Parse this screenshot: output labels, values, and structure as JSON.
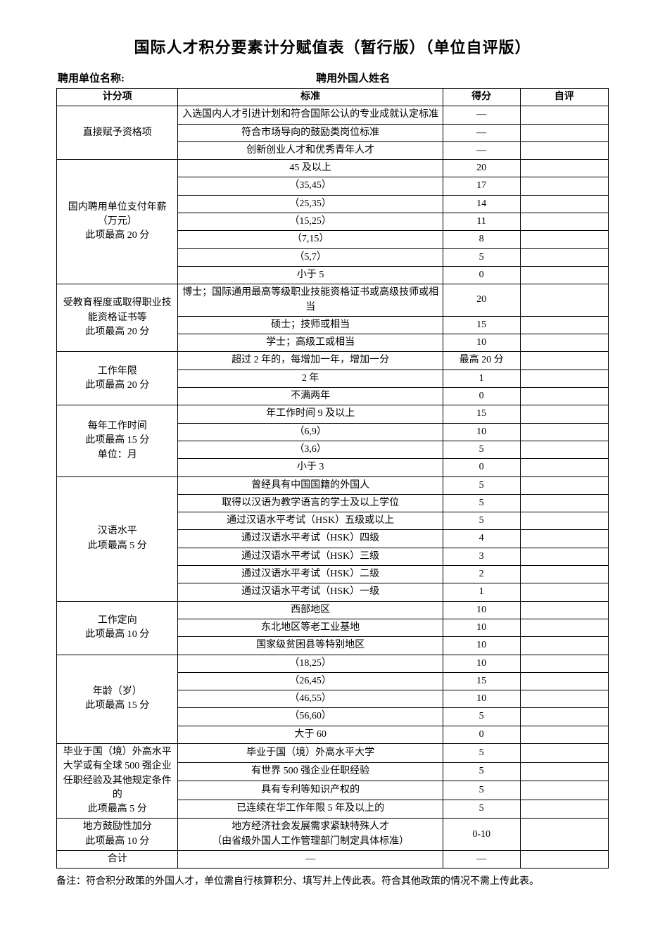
{
  "title": "国际人才积分要素计分赋值表（暂行版）（单位自评版）",
  "header": {
    "employer_label": "聘用单位名称:",
    "foreigner_label": "聘用外国人姓名"
  },
  "columns": {
    "category": "计分项",
    "standard": "标准",
    "score": "得分",
    "self_eval": "自评"
  },
  "sections": [
    {
      "category": "直接赋予资格项",
      "rows": [
        {
          "standard": "入选国内人才引进计划和符合国际公认的专业成就认定标准",
          "score": "—"
        },
        {
          "standard": "符合市场导向的鼓励类岗位标准",
          "score": "—"
        },
        {
          "standard": "创新创业人才和优秀青年人才",
          "score": "—"
        }
      ]
    },
    {
      "category": "国内聘用单位支付年薪（万元）\n此项最高 20 分",
      "rows": [
        {
          "standard": "45 及以上",
          "score": "20"
        },
        {
          "standard": "（35,45）",
          "score": "17"
        },
        {
          "standard": "（25,35）",
          "score": "14"
        },
        {
          "standard": "（15,25）",
          "score": "11"
        },
        {
          "standard": "（7,15）",
          "score": "8"
        },
        {
          "standard": "（5,7）",
          "score": "5"
        },
        {
          "standard": "小于 5",
          "score": "0"
        }
      ]
    },
    {
      "category": "受教育程度或取得职业技能资格证书等\n此项最高 20 分",
      "rows": [
        {
          "standard": "博士；国际通用最高等级职业技能资格证书或高级技师或相当",
          "score": "20"
        },
        {
          "standard": "硕士；技师或相当",
          "score": "15"
        },
        {
          "standard": "学士；高级工或相当",
          "score": "10"
        }
      ]
    },
    {
      "category": "工作年限\n此项最高 20 分",
      "rows": [
        {
          "standard": "超过 2 年的，每增加一年，增加一分",
          "score": "最高 20 分"
        },
        {
          "standard": "2 年",
          "score": "1"
        },
        {
          "standard": "不满两年",
          "score": "0"
        }
      ]
    },
    {
      "category": "每年工作时间\n此项最高 15 分\n单位：月",
      "rows": [
        {
          "standard": "年工作时间 9 及以上",
          "score": "15"
        },
        {
          "standard": "（6,9）",
          "score": "10"
        },
        {
          "standard": "（3,6）",
          "score": "5"
        },
        {
          "standard": "小于 3",
          "score": "0"
        }
      ]
    },
    {
      "category": "汉语水平\n此项最高 5 分",
      "rows": [
        {
          "standard": "曾经具有中国国籍的外国人",
          "score": "5"
        },
        {
          "standard": "取得以汉语为教学语言的学士及以上学位",
          "score": "5"
        },
        {
          "standard": "通过汉语水平考试（HSK）五级或以上",
          "score": "5"
        },
        {
          "standard": "通过汉语水平考试（HSK）四级",
          "score": "4"
        },
        {
          "standard": "通过汉语水平考试（HSK）三级",
          "score": "3"
        },
        {
          "standard": "通过汉语水平考试（HSK）二级",
          "score": "2"
        },
        {
          "standard": "通过汉语水平考试（HSK）一级",
          "score": "1"
        }
      ]
    },
    {
      "category": "工作定向\n此项最高 10 分",
      "rows": [
        {
          "standard": "西部地区",
          "score": "10"
        },
        {
          "standard": "东北地区等老工业基地",
          "score": "10"
        },
        {
          "standard": "国家级贫困县等特别地区",
          "score": "10"
        }
      ]
    },
    {
      "category": "年龄（岁）\n此项最高 15 分",
      "rows": [
        {
          "standard": "（18,25）",
          "score": "10"
        },
        {
          "standard": "（26,45）",
          "score": "15"
        },
        {
          "standard": "（46,55）",
          "score": "10"
        },
        {
          "standard": "（56,60）",
          "score": "5"
        },
        {
          "standard": "大于 60",
          "score": "0"
        }
      ]
    },
    {
      "category": "毕业于国（境）外高水平大学或有全球 500 强企业任职经验及其他规定条件的\n此项最高 5 分",
      "rows": [
        {
          "standard": "毕业于国（境）外高水平大学",
          "score": "5"
        },
        {
          "standard": "有世界 500 强企业任职经验",
          "score": "5"
        },
        {
          "standard": "具有专利等知识产权的",
          "score": "5"
        },
        {
          "standard": "已连续在华工作年限 5 年及以上的",
          "score": "5"
        }
      ]
    },
    {
      "category": "地方鼓励性加分\n此项最高 10 分",
      "rows": [
        {
          "standard": "地方经济社会发展需求紧缺特殊人才\n（由省级外国人工作管理部门制定具体标准）",
          "score": "0-10"
        }
      ]
    }
  ],
  "total_row": {
    "category": "合计",
    "standard": "—",
    "score": "—"
  },
  "footnote": "备注：符合积分政策的外国人才，单位需自行核算积分、填写并上传此表。符合其他政策的情况不需上传此表。"
}
